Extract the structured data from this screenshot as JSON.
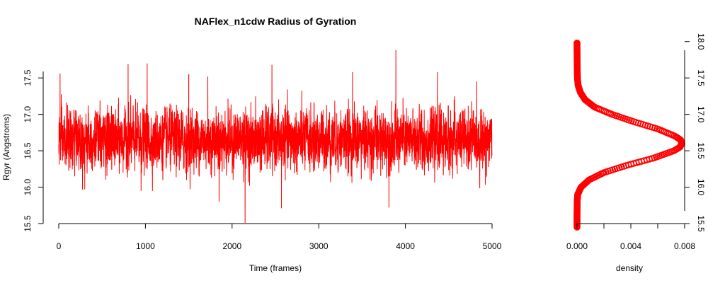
{
  "chart_data": [
    {
      "type": "line",
      "title": "NAFlex_n1cdw Radius of Gyration",
      "xlabel": "Time (frames)",
      "ylabel": "Rgyr (Angstroms)",
      "xlim": [
        0,
        5000
      ],
      "ylim": [
        15.5,
        17.9
      ],
      "x_ticks": [
        "0",
        "1000",
        "2000",
        "3000",
        "4000",
        "5000"
      ],
      "y_ticks": [
        "15.5",
        "16.0",
        "16.5",
        "17.0",
        "17.5"
      ],
      "grid": false,
      "color": "#ff0000",
      "series": [
        {
          "n_frames": 5000,
          "mean": 16.65,
          "sd": 0.2,
          "max": 17.88,
          "max_frame": 3890,
          "min": 15.51,
          "min_frame": 2150,
          "notable_peaks": [
            {
              "x": 15,
              "y": 17.56
            },
            {
              "x": 800,
              "y": 17.69
            },
            {
              "x": 1020,
              "y": 17.7
            },
            {
              "x": 1500,
              "y": 17.55
            },
            {
              "x": 1720,
              "y": 17.52
            },
            {
              "x": 2460,
              "y": 17.68
            },
            {
              "x": 3390,
              "y": 17.58
            },
            {
              "x": 3890,
              "y": 17.88
            },
            {
              "x": 4370,
              "y": 17.58
            }
          ],
          "notable_dips": [
            {
              "x": 2150,
              "y": 15.51
            },
            {
              "x": 2570,
              "y": 15.71
            },
            {
              "x": 3810,
              "y": 15.72
            },
            {
              "x": 1850,
              "y": 15.8
            },
            {
              "x": 950,
              "y": 15.95
            },
            {
              "x": 300,
              "y": 15.97
            }
          ]
        }
      ]
    },
    {
      "type": "line",
      "title": "",
      "xlabel": "density",
      "ylabel": "",
      "xlim": [
        0,
        0.008
      ],
      "ylim": [
        15.5,
        17.9
      ],
      "x_ticks": [
        "0.000",
        "0.004",
        "0.008"
      ],
      "y_ticks": [
        "15.5",
        "16.0",
        "16.5",
        "17.0",
        "17.5",
        "18.0"
      ],
      "y_axis_side": "right",
      "marker": "circle",
      "color": "#ff0000",
      "series": [
        {
          "points": [
            {
              "y": 15.45,
              "x": 0.0
            },
            {
              "y": 15.6,
              "x": 0.0
            },
            {
              "y": 15.8,
              "x": 1e-05
            },
            {
              "y": 15.9,
              "x": 5e-05
            },
            {
              "y": 16.0,
              "x": 0.0003
            },
            {
              "y": 16.1,
              "x": 0.0009
            },
            {
              "y": 16.2,
              "x": 0.002
            },
            {
              "y": 16.3,
              "x": 0.0037
            },
            {
              "y": 16.4,
              "x": 0.0057
            },
            {
              "y": 16.5,
              "x": 0.0072
            },
            {
              "y": 16.55,
              "x": 0.00765
            },
            {
              "y": 16.6,
              "x": 0.0078
            },
            {
              "y": 16.65,
              "x": 0.0077
            },
            {
              "y": 16.7,
              "x": 0.0073
            },
            {
              "y": 16.8,
              "x": 0.006
            },
            {
              "y": 16.9,
              "x": 0.0042
            },
            {
              "y": 17.0,
              "x": 0.0026
            },
            {
              "y": 17.1,
              "x": 0.0013
            },
            {
              "y": 17.2,
              "x": 0.0006
            },
            {
              "y": 17.3,
              "x": 0.00025
            },
            {
              "y": 17.4,
              "x": 8e-05
            },
            {
              "y": 17.5,
              "x": 3e-05
            },
            {
              "y": 17.7,
              "x": 1e-05
            },
            {
              "y": 17.9,
              "x": 0.0
            },
            {
              "y": 17.98,
              "x": 0.0
            }
          ]
        }
      ]
    }
  ]
}
